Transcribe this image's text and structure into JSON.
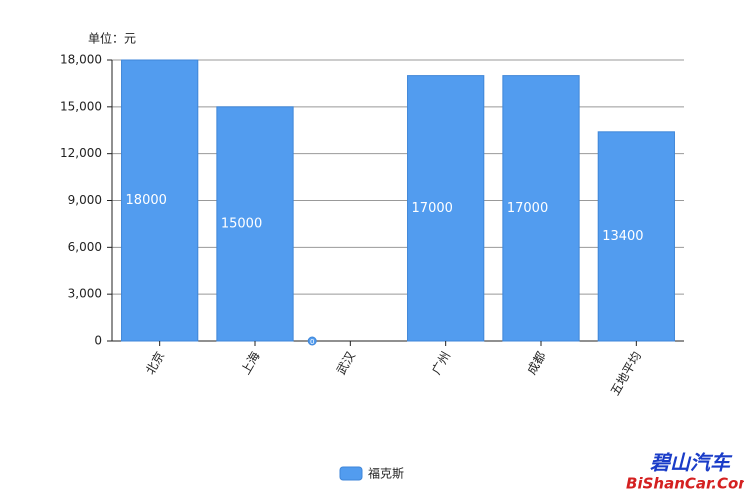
{
  "chart_data": {
    "type": "bar",
    "unit_label": "单位：元",
    "categories": [
      "北京",
      "上海",
      "武汉",
      "广州",
      "成都",
      "五地平均"
    ],
    "series": [
      {
        "name": "福克斯",
        "color": "#529cef",
        "values": [
          18000,
          15000,
          0,
          17000,
          17000,
          13400
        ]
      }
    ],
    "ylim": [
      0,
      18000
    ],
    "yticks": [
      0,
      {
        "value": 3000,
        "label": "3,000"
      },
      {
        "value": 6000,
        "label": "6,000"
      },
      {
        "value": 9000,
        "label": "9,000"
      },
      {
        "value": 12000,
        "label": "12,000"
      },
      {
        "value": 15000,
        "label": "15,000"
      },
      {
        "value": 18000,
        "label": "18,000"
      }
    ],
    "grid": true,
    "legend": "bottom",
    "watermark": [
      "碧山汽车",
      "BiShanCar.Com"
    ]
  }
}
